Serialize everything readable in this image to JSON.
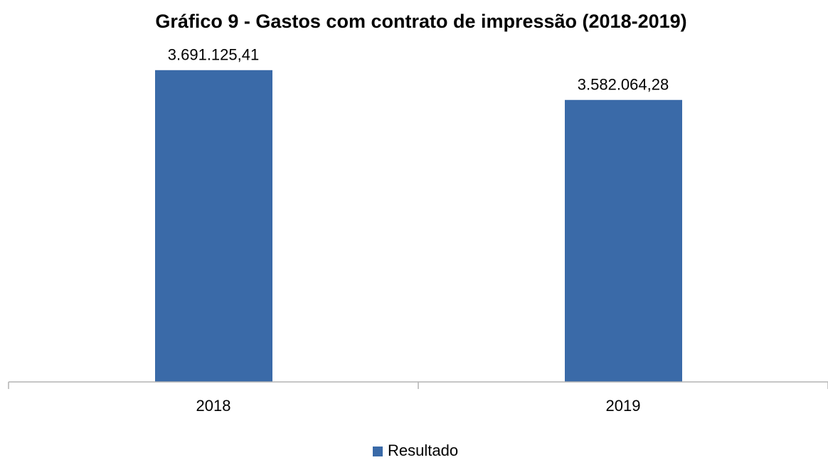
{
  "chart_data": {
    "type": "bar",
    "title": "Gráfico 9 - Gastos com contrato de impressão (2018-2019)",
    "categories": [
      "2018",
      "2019"
    ],
    "series": [
      {
        "name": "Resultado",
        "color": "#3a6aa8",
        "values": [
          3691125.41,
          3582064.28
        ],
        "value_labels": [
          "3.691.125,41",
          "3.582.064,28"
        ]
      }
    ],
    "ylim": [
      2550000,
      3740000
    ],
    "legend": "bottom"
  }
}
